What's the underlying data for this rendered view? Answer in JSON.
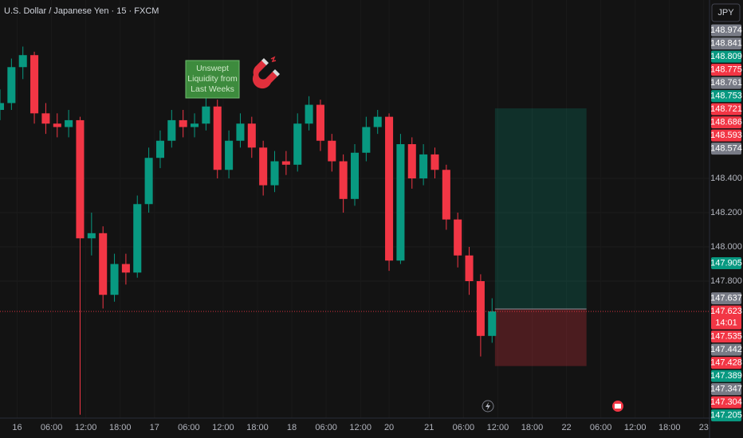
{
  "chart_data": {
    "type": "candlestick",
    "title": "U.S. Dollar / Japanese Yen · 15 · FXCM",
    "currency": "JPY",
    "up_color": "#089981",
    "down_color": "#f23645",
    "xlim": [
      -3,
      121
    ],
    "ylim": [
      147.014,
      149.442
    ],
    "xticks": [
      {
        "value": 0,
        "label": "16"
      },
      {
        "value": 6,
        "label": "06:00"
      },
      {
        "value": 12,
        "label": "12:00"
      },
      {
        "value": 18,
        "label": "18:00"
      },
      {
        "value": 24,
        "label": "17"
      },
      {
        "value": 30,
        "label": "06:00"
      },
      {
        "value": 36,
        "label": "12:00"
      },
      {
        "value": 42,
        "label": "18:00"
      },
      {
        "value": 48,
        "label": "18"
      },
      {
        "value": 54,
        "label": "06:00"
      },
      {
        "value": 60,
        "label": "12:00"
      },
      {
        "value": 65,
        "label": "20"
      },
      {
        "value": 72,
        "label": "21"
      },
      {
        "value": 78,
        "label": "06:00"
      },
      {
        "value": 84,
        "label": "12:00"
      },
      {
        "value": 90,
        "label": "18:00"
      },
      {
        "value": 96,
        "label": "22"
      },
      {
        "value": 102,
        "label": "06:00"
      },
      {
        "value": 108,
        "label": "12:00"
      },
      {
        "value": 114,
        "label": "18:00"
      },
      {
        "value": 120,
        "label": "23"
      }
    ],
    "yticks": [
      {
        "value": 148.4,
        "label": "148.400"
      },
      {
        "value": 148.2,
        "label": "148.200"
      },
      {
        "value": 148.0,
        "label": "148.000"
      },
      {
        "value": 147.8,
        "label": "147.800"
      }
    ],
    "x": [
      -3,
      -1,
      1,
      3,
      5,
      7,
      9,
      11,
      13,
      15,
      17,
      19,
      21,
      23,
      25,
      27,
      29,
      31,
      33,
      35,
      37,
      39,
      41,
      43,
      45,
      47,
      49,
      51,
      53,
      55,
      57,
      59,
      61,
      63,
      65,
      67,
      69,
      71,
      73,
      75,
      77,
      79,
      81,
      83
    ],
    "open": [
      148.8,
      148.84,
      149.05,
      149.12,
      148.78,
      148.72,
      148.7,
      148.74,
      148.05,
      148.08,
      147.72,
      147.9,
      147.85,
      148.25,
      148.52,
      148.62,
      148.74,
      148.7,
      148.72,
      148.82,
      148.45,
      148.62,
      148.72,
      148.58,
      148.36,
      148.5,
      148.48,
      148.72,
      148.83,
      148.62,
      148.5,
      148.28,
      148.55,
      148.7,
      148.76,
      147.92,
      148.6,
      148.4,
      148.54,
      148.45,
      148.16,
      147.95,
      147.8,
      147.48
    ],
    "high": [
      148.92,
      149.1,
      149.17,
      149.14,
      148.84,
      148.78,
      148.8,
      148.76,
      148.2,
      148.12,
      147.96,
      147.96,
      148.3,
      148.58,
      148.68,
      148.8,
      148.8,
      148.78,
      148.9,
      148.86,
      148.68,
      148.78,
      148.76,
      148.62,
      148.56,
      148.56,
      148.78,
      148.88,
      148.86,
      148.66,
      148.54,
      148.6,
      148.76,
      148.8,
      148.78,
      148.66,
      148.64,
      148.6,
      148.58,
      148.48,
      148.2,
      148.0,
      147.84,
      147.7
    ],
    "low": [
      148.74,
      148.8,
      148.98,
      148.72,
      148.66,
      148.64,
      148.64,
      147.02,
      147.95,
      147.64,
      147.68,
      147.78,
      147.82,
      148.2,
      148.46,
      148.58,
      148.64,
      148.64,
      148.68,
      148.4,
      148.4,
      148.58,
      148.52,
      148.3,
      148.32,
      148.42,
      148.44,
      148.68,
      148.56,
      148.44,
      148.2,
      148.24,
      148.5,
      148.66,
      147.86,
      147.9,
      148.34,
      148.36,
      148.4,
      148.1,
      147.88,
      147.72,
      147.36,
      147.44
    ],
    "close": [
      148.84,
      149.05,
      149.12,
      148.78,
      148.72,
      148.7,
      148.74,
      148.05,
      148.08,
      147.72,
      147.9,
      147.85,
      148.25,
      148.52,
      148.62,
      148.74,
      148.7,
      148.72,
      148.82,
      148.45,
      148.62,
      148.72,
      148.58,
      148.36,
      148.5,
      148.48,
      148.72,
      148.83,
      148.62,
      148.5,
      148.28,
      148.55,
      148.7,
      148.76,
      147.92,
      148.6,
      148.4,
      148.54,
      148.45,
      148.16,
      147.95,
      147.8,
      147.48,
      147.623
    ],
    "position": {
      "x": [
        83.5,
        99.5
      ],
      "target": 148.809,
      "entry": 147.637,
      "stop": 147.304
    },
    "annotation": [
      "Unswept",
      "Liquidity from",
      "Last Weeks"
    ],
    "price_labels": [
      {
        "value": 148.974,
        "color": "#787b86"
      },
      {
        "value": 148.841,
        "color": "#787b86"
      },
      {
        "value": 148.809,
        "color": "#089981"
      },
      {
        "value": 148.775,
        "color": "#f23645"
      },
      {
        "value": 148.761,
        "color": "#787b86"
      },
      {
        "value": 148.753,
        "color": "#089981"
      },
      {
        "value": 148.721,
        "color": "#f23645"
      },
      {
        "value": 148.686,
        "color": "#f23645"
      },
      {
        "value": 148.593,
        "color": "#f23645"
      },
      {
        "value": 148.574,
        "color": "#787b86"
      },
      {
        "value": 147.905,
        "color": "#089981"
      },
      {
        "value": 147.637,
        "color": "#787b86"
      },
      {
        "value": 147.623,
        "color": "#f23645",
        "countdown": "14:01"
      },
      {
        "value": 147.535,
        "color": "#f23645"
      },
      {
        "value": 147.442,
        "color": "#787b86"
      },
      {
        "value": 147.428,
        "color": "#f23645"
      },
      {
        "value": 147.389,
        "color": "#089981"
      },
      {
        "value": 147.347,
        "color": "#787b86"
      },
      {
        "value": 147.304,
        "color": "#f23645"
      },
      {
        "value": 147.205,
        "color": "#089981"
      }
    ]
  }
}
